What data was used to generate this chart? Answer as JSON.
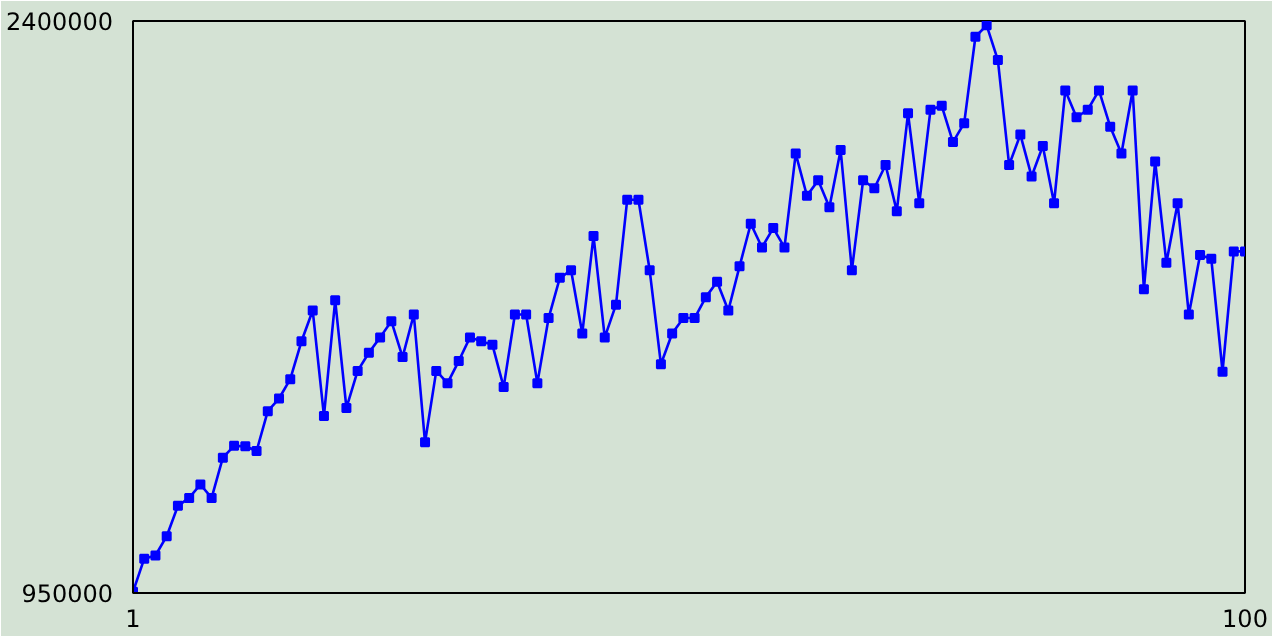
{
  "chart_data": {
    "type": "line",
    "x": [
      1,
      2,
      3,
      4,
      5,
      6,
      7,
      8,
      9,
      10,
      11,
      12,
      13,
      14,
      15,
      16,
      17,
      18,
      19,
      20,
      21,
      22,
      23,
      24,
      25,
      26,
      27,
      28,
      29,
      30,
      31,
      32,
      33,
      34,
      35,
      36,
      37,
      38,
      39,
      40,
      41,
      42,
      43,
      44,
      45,
      46,
      47,
      48,
      49,
      50,
      51,
      52,
      53,
      54,
      55,
      56,
      57,
      58,
      59,
      60,
      61,
      62,
      63,
      64,
      65,
      66,
      67,
      68,
      69,
      70,
      71,
      72,
      73,
      74,
      75,
      76,
      77,
      78,
      79,
      80,
      81,
      82,
      83,
      84,
      85,
      86,
      87,
      88,
      89,
      90,
      91,
      92,
      93,
      94,
      95,
      96,
      97,
      98,
      99,
      100
    ],
    "series": [
      {
        "color": "#0000ff",
        "values": [
          953000,
          1037000,
          1045000,
          1094000,
          1171000,
          1191000,
          1225000,
          1191000,
          1293000,
          1323000,
          1322000,
          1310000,
          1411000,
          1443000,
          1492000,
          1588000,
          1666000,
          1399000,
          1692000,
          1419000,
          1513000,
          1559000,
          1598000,
          1639000,
          1548000,
          1656000,
          1332000,
          1513000,
          1482000,
          1538000,
          1598000,
          1588000,
          1579000,
          1472000,
          1656000,
          1656000,
          1482000,
          1647000,
          1749000,
          1768000,
          1608000,
          1855000,
          1598000,
          1681000,
          1947000,
          1947000,
          1768000,
          1530000,
          1608000,
          1647000,
          1647000,
          1700000,
          1739000,
          1666000,
          1778000,
          1886000,
          1826000,
          1875000,
          1826000,
          2064000,
          1957000,
          1996000,
          1928000,
          2073000,
          1768000,
          1996000,
          1976000,
          2035000,
          1918000,
          2166000,
          1938000,
          2175000,
          2185000,
          2093000,
          2141000,
          2360000,
          2389000,
          2301000,
          2035000,
          2112000,
          2006000,
          2083000,
          1938000,
          2224000,
          2156000,
          2175000,
          2224000,
          2132000,
          2064000,
          2224000,
          1720000,
          2044000,
          1787000,
          1938000,
          1656000,
          1807000,
          1797000,
          1511000,
          1816000,
          1816000
        ]
      }
    ],
    "xlim": [
      1,
      100
    ],
    "ylim": [
      950000,
      2400000
    ],
    "xticks": [
      1,
      100
    ],
    "yticks": [
      950000,
      2400000
    ],
    "marker": "square",
    "line_style": "solid"
  }
}
